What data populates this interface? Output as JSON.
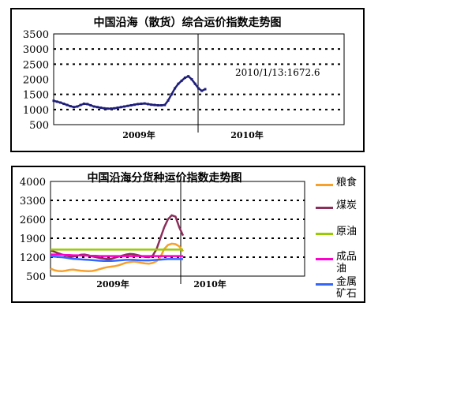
{
  "chart_data": [
    {
      "type": "line",
      "title": "中国沿海（散货）综合运价指数走势图",
      "ylim": [
        500,
        3500
      ],
      "yticks": [
        "3500",
        "3000",
        "2500",
        "2000",
        "1500",
        "1000",
        "500"
      ],
      "x_labels": [
        "2009年",
        "2010年"
      ],
      "annotation": "2010/1/13:1672.6",
      "grid": "dotted",
      "colors": {
        "line": "#1f1f7a"
      },
      "series": [
        {
          "values": [
            1290,
            1260,
            1230,
            1190,
            1150,
            1110,
            1080,
            1100,
            1150,
            1190,
            1180,
            1140,
            1100,
            1080,
            1060,
            1040,
            1030,
            1030,
            1040,
            1060,
            1080,
            1100,
            1120,
            1140,
            1160,
            1180,
            1190,
            1200,
            1180,
            1160,
            1150,
            1140,
            1140,
            1150,
            1300,
            1500,
            1700,
            1850,
            1950,
            2050,
            2100,
            2000,
            1850,
            1700,
            1620,
            1672.6
          ]
        }
      ]
    },
    {
      "type": "line",
      "title": "中国沿海分货种运价指数走势图",
      "ylim": [
        500,
        4000
      ],
      "yticks": [
        "4000",
        "3300",
        "2600",
        "1900",
        "1200",
        "500"
      ],
      "x_labels": [
        "2009年",
        "2010年"
      ],
      "grid": "dotted",
      "legend_position": "right",
      "series": [
        {
          "name": "粮食",
          "color": "#f7a02a",
          "values": [
            780,
            720,
            690,
            680,
            700,
            730,
            740,
            720,
            700,
            690,
            680,
            690,
            720,
            760,
            800,
            830,
            850,
            870,
            900,
            950,
            1000,
            1020,
            1040,
            1020,
            990,
            970,
            960,
            990,
            1050,
            1200,
            1500,
            1650,
            1700,
            1680,
            1600,
            1420
          ]
        },
        {
          "name": "煤炭",
          "color": "#8b2e5a",
          "values": [
            1450,
            1400,
            1350,
            1300,
            1260,
            1230,
            1220,
            1250,
            1290,
            1300,
            1270,
            1230,
            1200,
            1170,
            1150,
            1130,
            1140,
            1180,
            1220,
            1260,
            1300,
            1320,
            1310,
            1280,
            1240,
            1210,
            1200,
            1260,
            1500,
            1900,
            2300,
            2600,
            2750,
            2700,
            2300,
            2000
          ]
        },
        {
          "name": "原油",
          "color": "#99cc00",
          "values": [
            1480,
            1480,
            1480,
            1480,
            1480,
            1480,
            1480,
            1480,
            1480,
            1480,
            1480,
            1480,
            1480,
            1480,
            1480,
            1480,
            1480,
            1480,
            1480,
            1480,
            1480,
            1480,
            1480,
            1480,
            1480,
            1480,
            1480,
            1480,
            1480,
            1480,
            1480,
            1480,
            1480,
            1480,
            1480,
            1480
          ]
        },
        {
          "name": "成品油",
          "color": "#ff00cc",
          "values": [
            1300,
            1300,
            1290,
            1290,
            1280,
            1280,
            1270,
            1270,
            1260,
            1260,
            1250,
            1250,
            1250,
            1240,
            1240,
            1240,
            1240,
            1240,
            1240,
            1240,
            1240,
            1240,
            1240,
            1240,
            1240,
            1240,
            1240,
            1240,
            1240,
            1240,
            1240,
            1240,
            1240,
            1240,
            1240,
            1240
          ]
        },
        {
          "name": "金属矿石",
          "color": "#3366ff",
          "values": [
            1230,
            1220,
            1210,
            1200,
            1180,
            1160,
            1140,
            1130,
            1120,
            1110,
            1100,
            1090,
            1080,
            1070,
            1060,
            1060,
            1060,
            1070,
            1080,
            1090,
            1100,
            1100,
            1100,
            1090,
            1080,
            1080,
            1080,
            1090,
            1100,
            1110,
            1120,
            1130,
            1130,
            1130,
            1130,
            1130
          ]
        }
      ]
    }
  ]
}
